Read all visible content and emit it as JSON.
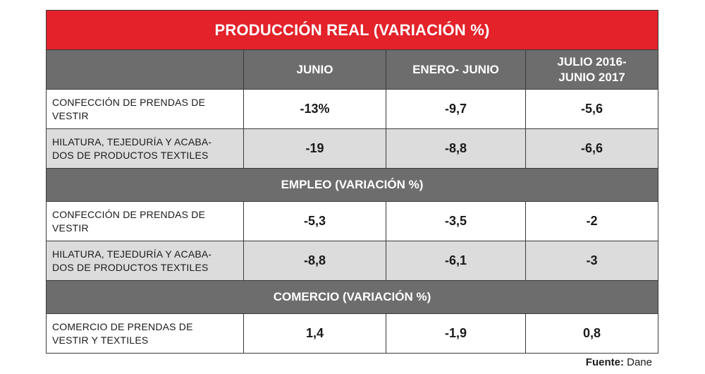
{
  "title": "PRODUCCIÓN REAL (VARIACIÓN %)",
  "columns": [
    "JUNIO",
    "ENERO- JUNIO",
    "JULIO 2016-\nJUNIO 2017"
  ],
  "columns_line1": [
    "JUNIO",
    "ENERO- JUNIO",
    "JULIO 2016-"
  ],
  "columns_line2": [
    "",
    "",
    "JUNIO 2017"
  ],
  "sections": [
    {
      "heading": "",
      "rows": [
        {
          "label_line1": "CONFECCIÓN DE PRENDAS DE VESTIR",
          "label_line2": "",
          "values": [
            "-13%",
            "-9,7",
            "-5,6"
          ]
        },
        {
          "label_line1": "HILATURA, TEJEDURÍA Y ACABA-",
          "label_line2": "DOS DE PRODUCTOS TEXTILES",
          "values": [
            "-19",
            "-8,8",
            "-6,6"
          ]
        }
      ]
    },
    {
      "heading": "EMPLEO (VARIACIÓN %)",
      "rows": [
        {
          "label_line1": "CONFECCIÓN DE PRENDAS DE VESTIR",
          "label_line2": "",
          "values": [
            "-5,3",
            "-3,5",
            "-2"
          ]
        },
        {
          "label_line1": "HILATURA, TEJEDURÍA Y ACABA-",
          "label_line2": "DOS DE PRODUCTOS TEXTILES",
          "values": [
            "-8,8",
            "-6,1",
            "-3"
          ]
        }
      ]
    },
    {
      "heading": "COMERCIO (VARIACIÓN %)",
      "rows": [
        {
          "label_line1": "COMERCIO DE PRENDAS DE",
          "label_line2": "VESTIR Y TEXTILES",
          "values": [
            "1,4",
            "-1,9",
            "0,8"
          ]
        }
      ]
    }
  ],
  "source": {
    "label": "Fuente:",
    "value": " Dane"
  },
  "colors": {
    "title_bg": "#e3222a",
    "header_bg": "#6d6d6d",
    "alt_row_bg": "#dcdcdc"
  }
}
